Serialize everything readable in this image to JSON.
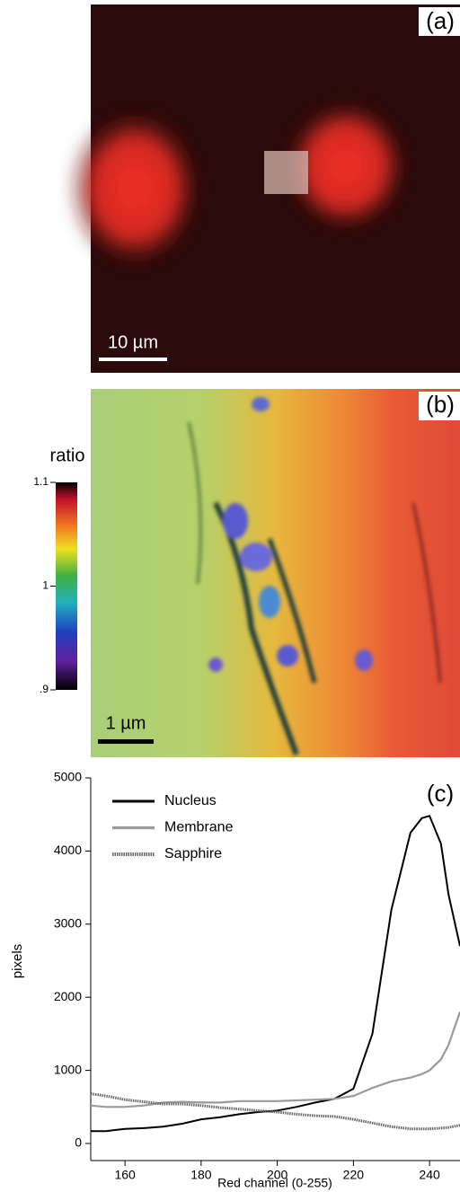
{
  "panels": [
    {
      "label": "(a)",
      "scale_bar": "10 µm"
    },
    {
      "label": "(b)",
      "scale_bar": "1 µm",
      "colorbar": {
        "title": "ratio",
        "lim": [
          0.9,
          1.1
        ],
        "ticks": [
          1.1,
          1,
          {
            "value": 0.9,
            "label": ".9"
          }
        ]
      }
    }
  ],
  "chart_data": {
    "type": "line",
    "annotation": "(c)",
    "x_label": "Red channel (0-255)",
    "y_label": "pixels",
    "x": [
      151,
      155,
      160,
      165,
      170,
      175,
      180,
      185,
      190,
      195,
      200,
      205,
      210,
      215,
      220,
      225,
      230,
      235,
      238,
      240,
      243,
      245,
      248
    ],
    "series": [
      {
        "name": "Nucleus",
        "color": "#000000",
        "values": [
          170,
          170,
          200,
          210,
          230,
          270,
          330,
          360,
          400,
          430,
          450,
          500,
          560,
          610,
          750,
          1500,
          3200,
          4250,
          4450,
          4480,
          4100,
          3400,
          2700
        ]
      },
      {
        "name": "Membrane",
        "color": "#9a9a9a",
        "values": [
          520,
          500,
          500,
          520,
          560,
          570,
          560,
          560,
          580,
          580,
          580,
          590,
          600,
          610,
          650,
          760,
          850,
          900,
          950,
          1000,
          1150,
          1350,
          1800
        ]
      },
      {
        "name": "Sapphire",
        "color": "#666666",
        "values": [
          680,
          650,
          600,
          570,
          540,
          540,
          520,
          490,
          470,
          450,
          430,
          400,
          380,
          370,
          330,
          280,
          230,
          200,
          200,
          200,
          210,
          220,
          250
        ]
      }
    ],
    "xlim": [
      151,
      248
    ],
    "xticks": [
      160,
      180,
      200,
      220,
      240
    ],
    "ylim": [
      0,
      5000
    ],
    "yticks": [
      0,
      1000,
      2000,
      3000,
      4000,
      5000
    ]
  }
}
